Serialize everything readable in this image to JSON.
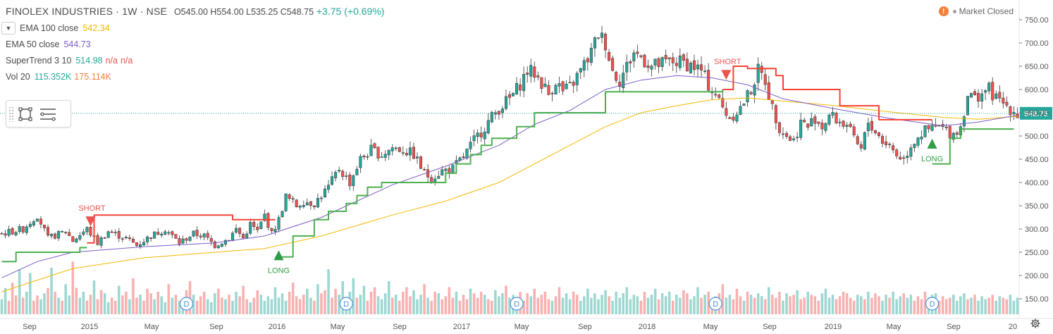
{
  "header": {
    "symbol": "FINOLEX INDUSTRIES · 1W · NSE",
    "ohlc": "O545.00 H554.00 L535.25 C548.75",
    "change": "+3.75 (+0.69%)"
  },
  "indicators": {
    "ema100_label": "EMA 100 close",
    "ema100_value": "542.34",
    "ema50_label": "EMA 50 close",
    "ema50_value": "544.73",
    "supertrend_label": "SuperTrend 3 10",
    "supertrend_value": "514.98",
    "supertrend_na1": "n/a",
    "supertrend_na2": "n/a",
    "vol_label": "Vol 20",
    "vol_value1": "115.352K",
    "vol_value2": "175.114K"
  },
  "market_status": "Market Closed",
  "colors": {
    "up": "#26a69a",
    "down": "#ef5350",
    "ema100": "#f5b800",
    "ema50": "#7b5cc8",
    "supertrend_up": "#4caf50",
    "supertrend_down": "#f44336",
    "label_long": "#2f9e44",
    "label_short": "#ef5350"
  },
  "chart_data": {
    "type": "candlestick",
    "title": "FINOLEX INDUSTRIES · 1W · NSE",
    "y_axis": {
      "ticks": [
        "750.00",
        "700.00",
        "650.00",
        "600.00",
        "550.00",
        "500.00",
        "450.00",
        "400.00",
        "350.00",
        "300.00",
        "250.00",
        "200.00",
        "150.00"
      ],
      "range": [
        100,
        775
      ]
    },
    "x_axis": {
      "ticks": [
        "Sep",
        "2015",
        "May",
        "Sep",
        "2016",
        "May",
        "Sep",
        "2017",
        "May",
        "Sep",
        "2018",
        "May",
        "Sep",
        "2019",
        "May",
        "Sep",
        "20"
      ]
    },
    "last_price_label": "548.75",
    "close_path": [
      [
        0,
        290
      ],
      [
        6,
        300
      ],
      [
        10,
        330
      ],
      [
        13,
        280
      ],
      [
        18,
        295
      ],
      [
        20,
        275
      ],
      [
        24,
        300
      ],
      [
        27,
        270
      ],
      [
        30,
        295
      ],
      [
        35,
        280
      ],
      [
        38,
        265
      ],
      [
        42,
        285
      ],
      [
        46,
        300
      ],
      [
        50,
        270
      ],
      [
        54,
        290
      ],
      [
        57,
        285
      ],
      [
        60,
        265
      ],
      [
        64,
        280
      ],
      [
        66,
        300
      ],
      [
        68,
        280
      ],
      [
        70,
        310
      ],
      [
        72,
        295
      ],
      [
        74,
        330
      ],
      [
        76,
        290
      ],
      [
        78,
        320
      ],
      [
        80,
        370
      ],
      [
        83,
        350
      ],
      [
        85,
        360
      ],
      [
        88,
        355
      ],
      [
        92,
        390
      ],
      [
        95,
        430
      ],
      [
        98,
        400
      ],
      [
        101,
        450
      ],
      [
        104,
        470
      ],
      [
        107,
        460
      ],
      [
        110,
        475
      ],
      [
        113,
        470
      ],
      [
        116,
        460
      ],
      [
        119,
        420
      ],
      [
        121,
        410
      ],
      [
        124,
        425
      ],
      [
        127,
        430
      ],
      [
        130,
        455
      ],
      [
        133,
        490
      ],
      [
        136,
        520
      ],
      [
        138,
        540
      ],
      [
        140,
        560
      ],
      [
        143,
        580
      ],
      [
        145,
        600
      ],
      [
        148,
        640
      ],
      [
        150,
        635
      ],
      [
        152,
        615
      ],
      [
        154,
        590
      ],
      [
        156,
        620
      ],
      [
        158,
        595
      ],
      [
        160,
        605
      ],
      [
        163,
        640
      ],
      [
        166,
        680
      ],
      [
        168,
        720
      ],
      [
        170,
        700
      ],
      [
        172,
        640
      ],
      [
        174,
        620
      ],
      [
        176,
        650
      ],
      [
        178,
        680
      ],
      [
        180,
        670
      ],
      [
        183,
        650
      ],
      [
        186,
        655
      ],
      [
        189,
        660
      ],
      [
        192,
        658
      ],
      [
        195,
        650
      ],
      [
        197,
        640
      ],
      [
        199,
        610
      ],
      [
        201,
        590
      ],
      [
        203,
        560
      ],
      [
        205,
        540
      ],
      [
        208,
        560
      ],
      [
        211,
        600
      ],
      [
        213,
        640
      ],
      [
        215,
        620
      ],
      [
        217,
        560
      ],
      [
        219,
        520
      ],
      [
        221,
        500
      ],
      [
        223,
        490
      ],
      [
        225,
        530
      ],
      [
        227,
        520
      ],
      [
        229,
        540
      ],
      [
        231,
        520
      ],
      [
        233,
        545
      ],
      [
        236,
        530
      ],
      [
        238,
        525
      ],
      [
        240,
        490
      ],
      [
        242,
        470
      ],
      [
        244,
        530
      ],
      [
        246,
        510
      ],
      [
        248,
        490
      ],
      [
        250,
        480
      ],
      [
        252,
        460
      ],
      [
        254,
        450
      ],
      [
        256,
        480
      ],
      [
        258,
        500
      ],
      [
        260,
        510
      ],
      [
        262,
        515
      ],
      [
        264,
        520
      ],
      [
        266,
        510
      ],
      [
        268,
        505
      ],
      [
        270,
        520
      ],
      [
        272,
        590
      ],
      [
        274,
        580
      ],
      [
        276,
        595
      ],
      [
        278,
        600
      ],
      [
        280,
        580
      ],
      [
        282,
        570
      ],
      [
        284,
        560
      ],
      [
        286,
        548.75
      ]
    ],
    "ema50_path": [
      [
        0,
        195
      ],
      [
        10,
        230
      ],
      [
        20,
        250
      ],
      [
        40,
        262
      ],
      [
        60,
        270
      ],
      [
        74,
        285
      ],
      [
        90,
        325
      ],
      [
        110,
        395
      ],
      [
        125,
        435
      ],
      [
        140,
        480
      ],
      [
        150,
        525
      ],
      [
        160,
        555
      ],
      [
        170,
        600
      ],
      [
        180,
        620
      ],
      [
        190,
        630
      ],
      [
        200,
        625
      ],
      [
        210,
        610
      ],
      [
        220,
        580
      ],
      [
        235,
        558
      ],
      [
        250,
        538
      ],
      [
        265,
        522
      ],
      [
        275,
        530
      ],
      [
        286,
        544.73
      ]
    ],
    "ema100_path": [
      [
        0,
        165
      ],
      [
        20,
        215
      ],
      [
        40,
        238
      ],
      [
        60,
        250
      ],
      [
        74,
        258
      ],
      [
        90,
        285
      ],
      [
        110,
        330
      ],
      [
        125,
        360
      ],
      [
        140,
        400
      ],
      [
        150,
        440
      ],
      [
        160,
        480
      ],
      [
        170,
        520
      ],
      [
        180,
        550
      ],
      [
        190,
        565
      ],
      [
        200,
        578
      ],
      [
        210,
        582
      ],
      [
        220,
        575
      ],
      [
        235,
        565
      ],
      [
        250,
        552
      ],
      [
        265,
        540
      ],
      [
        275,
        536
      ],
      [
        286,
        542.34
      ]
    ],
    "supertrend_up_1": [
      [
        0,
        230
      ],
      [
        4,
        230
      ],
      [
        4,
        250
      ],
      [
        22,
        250
      ],
      [
        22,
        260
      ],
      [
        24,
        260
      ]
    ],
    "supertrend_down_1": [
      [
        24,
        270
      ],
      [
        26,
        270
      ],
      [
        26,
        330
      ],
      [
        65,
        330
      ],
      [
        65,
        320
      ],
      [
        77,
        320
      ]
    ],
    "supertrend_up_2": [
      [
        77,
        240
      ],
      [
        82,
        240
      ],
      [
        82,
        285
      ],
      [
        88,
        285
      ],
      [
        88,
        320
      ],
      [
        92,
        320
      ],
      [
        92,
        338
      ],
      [
        97,
        338
      ],
      [
        97,
        355
      ],
      [
        100,
        355
      ],
      [
        100,
        372
      ],
      [
        103,
        372
      ],
      [
        103,
        390
      ],
      [
        107,
        390
      ],
      [
        107,
        400
      ],
      [
        125,
        400
      ],
      [
        125,
        420
      ],
      [
        128,
        420
      ],
      [
        128,
        440
      ],
      [
        132,
        440
      ],
      [
        132,
        460
      ],
      [
        135,
        460
      ],
      [
        135,
        480
      ],
      [
        138,
        480
      ],
      [
        138,
        495
      ],
      [
        145,
        495
      ],
      [
        145,
        520
      ],
      [
        150,
        520
      ],
      [
        150,
        550
      ],
      [
        170,
        550
      ],
      [
        170,
        595
      ],
      [
        203,
        595
      ],
      [
        203,
        600
      ]
    ],
    "supertrend_down_2": [
      [
        203,
        600
      ],
      [
        206,
        600
      ],
      [
        206,
        650
      ],
      [
        210,
        650
      ],
      [
        210,
        645
      ],
      [
        218,
        645
      ],
      [
        218,
        630
      ],
      [
        220,
        630
      ],
      [
        220,
        600
      ],
      [
        236,
        600
      ],
      [
        236,
        565
      ],
      [
        247,
        565
      ],
      [
        247,
        535
      ],
      [
        262,
        535
      ]
    ],
    "supertrend_up_3": [
      [
        262,
        440
      ],
      [
        267,
        440
      ],
      [
        267,
        495
      ],
      [
        270,
        495
      ],
      [
        270,
        515
      ],
      [
        285,
        515
      ]
    ],
    "signals": [
      {
        "type": "SHORT",
        "x": 25,
        "y": 315
      },
      {
        "type": "LONG",
        "x": 78,
        "y": 245
      },
      {
        "type": "SHORT",
        "x": 204,
        "y": 630
      },
      {
        "type": "LONG",
        "x": 262,
        "y": 485
      }
    ],
    "volume_bars": [
      20,
      35,
      18,
      42,
      25,
      60,
      22,
      30,
      55,
      18,
      25,
      20,
      28,
      35,
      62,
      30,
      22,
      18,
      40,
      25,
      70,
      35,
      22,
      30,
      18,
      26,
      45,
      20,
      32,
      28,
      16,
      22,
      18,
      38,
      25,
      30,
      20,
      48,
      22,
      26,
      18,
      34,
      28,
      20,
      30,
      24,
      16,
      40,
      22,
      26,
      18,
      20,
      32,
      44,
      26,
      18,
      24,
      30,
      20,
      16,
      28,
      34,
      22,
      20,
      26,
      18,
      30,
      24,
      38,
      20,
      16,
      22,
      32,
      26,
      18,
      24,
      20,
      36,
      22,
      28,
      18,
      30,
      42,
      24,
      20,
      26,
      34,
      22,
      18,
      40,
      28,
      32,
      60,
      22,
      34,
      26,
      44,
      20,
      30,
      48,
      22,
      26,
      38,
      18,
      30,
      36,
      24,
      20,
      28,
      44,
      22,
      26,
      18,
      30,
      36,
      24,
      32,
      20,
      26,
      40,
      22,
      18,
      30,
      28,
      20,
      24,
      36,
      22,
      30,
      18,
      26,
      20,
      34,
      28,
      22,
      30,
      26,
      20,
      18,
      32,
      24,
      28,
      38,
      22,
      26,
      20,
      30,
      18,
      28,
      24,
      34,
      22,
      26,
      30,
      20,
      18,
      24,
      36,
      22,
      28,
      20,
      30,
      26,
      18,
      24,
      34,
      22,
      28,
      20,
      26,
      32,
      24,
      18,
      30,
      22,
      28,
      36,
      20,
      26,
      24,
      18,
      30,
      22,
      26,
      34,
      20,
      28,
      24,
      30,
      18,
      26,
      22,
      32,
      28,
      20,
      24,
      36,
      22,
      26,
      30,
      18,
      24,
      28,
      40,
      22,
      26,
      20,
      34,
      24,
      18,
      30,
      26,
      22,
      28,
      24,
      20,
      36,
      26,
      22,
      30,
      18,
      28,
      24,
      26,
      32,
      20,
      22,
      30,
      26,
      24,
      18,
      28,
      34,
      22,
      26,
      20,
      24,
      30,
      28,
      22,
      18,
      26,
      24,
      20,
      30,
      22,
      28,
      24,
      18,
      26,
      22,
      30,
      20,
      24,
      28,
      22,
      26,
      18,
      24,
      20,
      30,
      22,
      26,
      28,
      18,
      24,
      20,
      22,
      26,
      18,
      24,
      28,
      20,
      22,
      26,
      18,
      24,
      20,
      22,
      26,
      18,
      24,
      22,
      20,
      26,
      18,
      22,
      24,
      20,
      22,
      18,
      20,
      24,
      18,
      22,
      20,
      18,
      22,
      20,
      18,
      20
    ],
    "dividend_marker": "D",
    "dividend_positions": [
      52,
      97,
      145,
      201,
      262
    ]
  }
}
